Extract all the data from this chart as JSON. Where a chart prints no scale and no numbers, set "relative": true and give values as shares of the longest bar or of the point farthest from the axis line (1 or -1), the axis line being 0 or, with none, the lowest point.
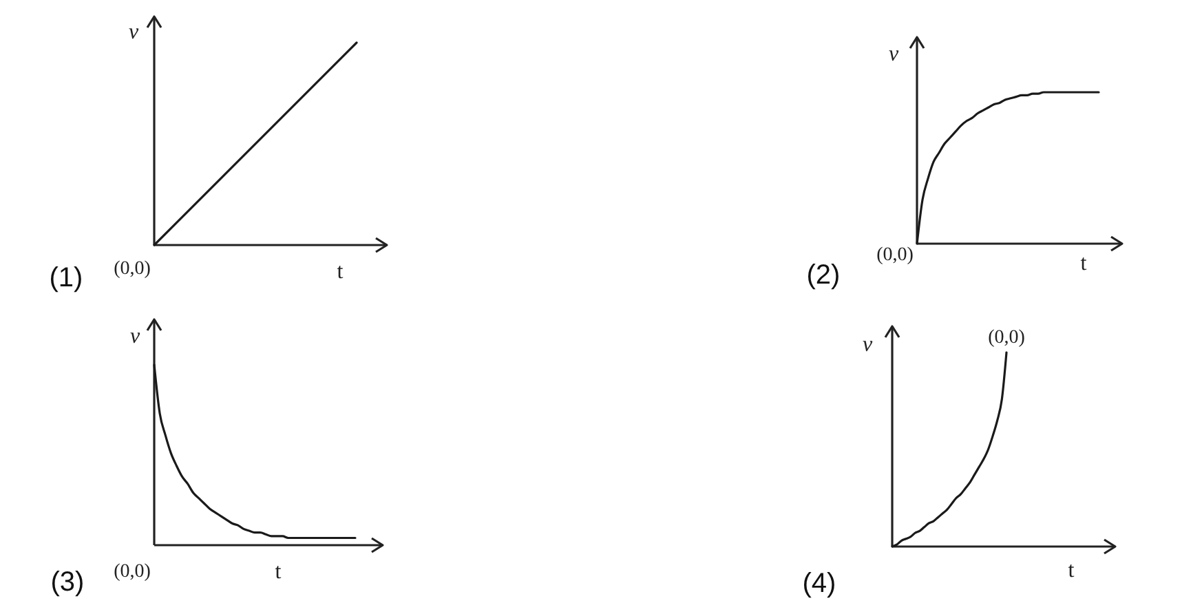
{
  "chart_data": [
    {
      "type": "line",
      "title": "(1)",
      "xlabel": "t",
      "ylabel": "v",
      "annotations": [
        "(0,0)"
      ],
      "relative": true,
      "color": "#1a1a1a",
      "categories": [
        null,
        null
      ],
      "values": [
        0,
        1
      ]
    },
    {
      "type": "line",
      "title": "(2)",
      "xlabel": "t",
      "ylabel": "v",
      "annotations": [
        "(0,0)"
      ],
      "relative": true,
      "color": "#1a1a1a",
      "categories": [
        null,
        null,
        null,
        null,
        null,
        null,
        null,
        null,
        null,
        null,
        null,
        null,
        null,
        null,
        null,
        null,
        null,
        null,
        null,
        null,
        null,
        null,
        null,
        null,
        null,
        null,
        null,
        null,
        null,
        null,
        null,
        null,
        null,
        null
      ],
      "values": [
        0,
        0.29,
        0.43,
        0.54,
        0.6,
        0.66,
        0.7,
        0.74,
        0.78,
        0.81,
        0.83,
        0.86,
        0.88,
        0.9,
        0.92,
        0.93,
        0.95,
        0.96,
        0.97,
        0.98,
        0.98,
        0.99,
        0.99,
        1,
        1,
        1,
        1,
        1,
        1,
        1,
        1,
        1,
        1,
        1
      ]
    },
    {
      "type": "line",
      "title": "(3)",
      "xlabel": "t",
      "ylabel": "v",
      "annotations": [
        "(0,0)"
      ],
      "relative": true,
      "color": "#1a1a1a",
      "categories": [
        null,
        null,
        null,
        null,
        null,
        null,
        null,
        null,
        null,
        null,
        null,
        null,
        null,
        null,
        null,
        null,
        null,
        null,
        null,
        null,
        null,
        null,
        null,
        null,
        null,
        null,
        null,
        null,
        null,
        null,
        null,
        null,
        null,
        null,
        null,
        null,
        null
      ],
      "values": [
        1,
        0.73,
        0.61,
        0.51,
        0.44,
        0.38,
        0.34,
        0.29,
        0.26,
        0.23,
        0.2,
        0.18,
        0.16,
        0.14,
        0.12,
        0.11,
        0.09,
        0.08,
        0.07,
        0.07,
        0.06,
        0.05,
        0.05,
        0.05,
        0.04,
        0.04,
        0.04,
        0.04,
        0.04,
        0.04,
        0.04,
        0.04,
        0.04,
        0.04,
        0.04,
        0.04,
        0.04
      ]
    },
    {
      "type": "line",
      "title": "(4)",
      "xlabel": "t",
      "ylabel": "v",
      "annotations": [
        {
          "text": "(0,0)",
          "y": 1
        }
      ],
      "relative": true,
      "color": "#1a1a1a",
      "categories": [
        null,
        null,
        null,
        null,
        null,
        null,
        null,
        null,
        null,
        null,
        null,
        null,
        null,
        null,
        null,
        null,
        null,
        null,
        null,
        null,
        null,
        null,
        null,
        null,
        null,
        null
      ],
      "values": [
        0,
        0.01,
        0.03,
        0.04,
        0.05,
        0.07,
        0.08,
        0.1,
        0.12,
        0.13,
        0.15,
        0.17,
        0.19,
        0.22,
        0.25,
        0.27,
        0.3,
        0.33,
        0.37,
        0.41,
        0.45,
        0.5,
        0.57,
        0.65,
        0.76,
        1
      ]
    }
  ]
}
